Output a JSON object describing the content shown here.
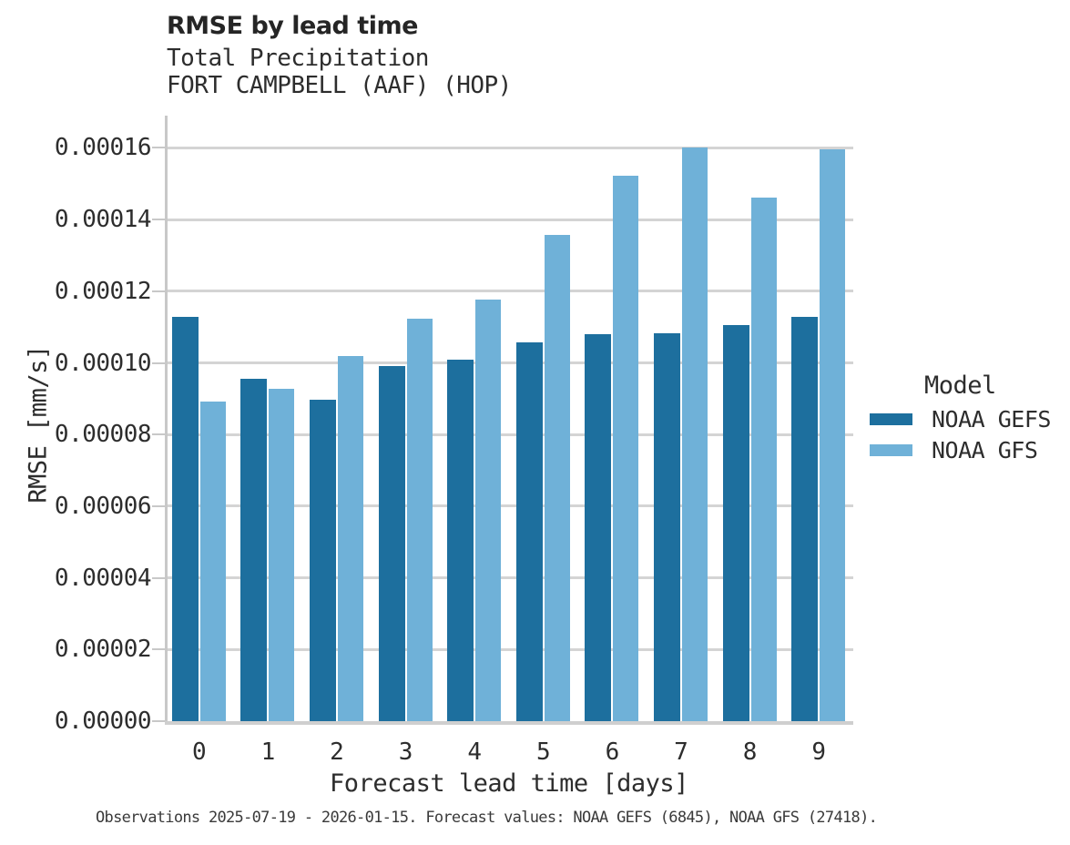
{
  "header": {
    "title": "RMSE by lead time",
    "subtitle1": "Total Precipitation",
    "subtitle2": "FORT CAMPBELL (AAF) (HOP)"
  },
  "chart_data": {
    "type": "bar",
    "title": "RMSE by lead time",
    "subtitle": [
      "Total Precipitation",
      "FORT CAMPBELL (AAF) (HOP)"
    ],
    "xlabel": "Forecast lead time [days]",
    "ylabel": "RMSE [mm/s]",
    "categories": [
      "0",
      "1",
      "2",
      "3",
      "4",
      "5",
      "6",
      "7",
      "8",
      "9"
    ],
    "series": [
      {
        "name": "NOAA GEFS",
        "color": "#1d6f9e",
        "values": [
          0.0001128,
          9.56e-05,
          8.98e-05,
          9.92e-05,
          0.000101,
          0.0001058,
          0.0001081,
          0.0001083,
          0.0001106,
          0.0001129
        ]
      },
      {
        "name": "NOAA GFS",
        "color": "#6fb1d8",
        "values": [
          8.93e-05,
          9.28e-05,
          0.000102,
          0.0001124,
          0.0001177,
          0.0001357,
          0.0001523,
          0.0001601,
          0.0001462,
          0.0001596
        ]
      }
    ],
    "ylim": [
      0,
      0.000169
    ],
    "yticks": [
      0,
      2e-05,
      4e-05,
      6e-05,
      8e-05,
      0.0001,
      0.00012,
      0.00014,
      0.00016
    ],
    "ytick_labels": [
      "0.00000",
      "0.00002",
      "0.00004",
      "0.00006",
      "0.00008",
      "0.00010",
      "0.00012",
      "0.00014",
      "0.00016"
    ],
    "grid": true,
    "legend_title": "Model",
    "legend_position": "right"
  },
  "legend": {
    "title": "Model",
    "entries": [
      {
        "label": "NOAA GEFS",
        "color": "#1d6f9e"
      },
      {
        "label": "NOAA GFS",
        "color": "#6fb1d8"
      }
    ]
  },
  "footer": {
    "note": "Observations 2025-07-19 - 2026-01-15. Forecast values: NOAA GEFS (6845), NOAA GFS (27418)."
  },
  "colors": {
    "gridline": "#d4d4d4",
    "axis": "#c8c8c8",
    "text": "#2d2d2d"
  }
}
